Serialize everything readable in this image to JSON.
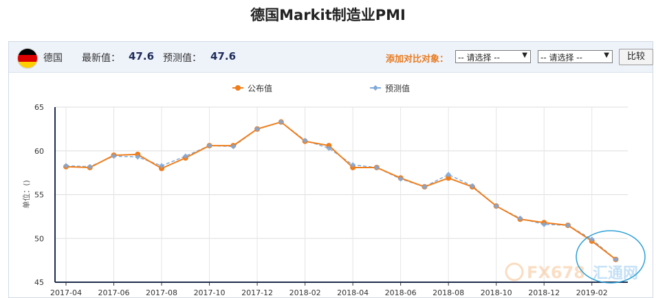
{
  "page": {
    "title": "德国Markit制造业PMI"
  },
  "header": {
    "country": "德国",
    "latest_label": "最新值：",
    "latest_value": "47.6",
    "forecast_label": "预测值：",
    "forecast_value": "47.6",
    "compare_label": "添加对比对象：",
    "select1": "-- 请选择 --",
    "select2": "-- 请选择 --",
    "compare_button": "比较"
  },
  "colors": {
    "published": "#f07d1a",
    "forecast": "#7fa9d9",
    "highlight_circle": "#2a9fd6",
    "flag": [
      "#000000",
      "#dd0000",
      "#ffce00"
    ]
  },
  "watermark": {
    "text_latin": "FX678",
    "text_cjk": "汇通网"
  },
  "chart_data": {
    "type": "line",
    "legend_position": "top-center",
    "grid": true,
    "ylabel": "单位：()",
    "ylim": [
      45,
      65
    ],
    "yticks": [
      45,
      50,
      55,
      60,
      65
    ],
    "x": [
      "2017-04",
      "2017-05",
      "2017-06",
      "2017-07",
      "2017-08",
      "2017-09",
      "2017-10",
      "2017-11",
      "2017-12",
      "2018-01",
      "2018-02",
      "2018-03",
      "2018-04",
      "2018-05",
      "2018-06",
      "2018-07",
      "2018-08",
      "2018-09",
      "2018-10",
      "2018-11",
      "2018-12",
      "2019-01",
      "2019-02",
      "2019-03"
    ],
    "xtick_labels": [
      "2017-04",
      "2017-06",
      "2017-08",
      "2017-10",
      "2017-12",
      "2018-02",
      "2018-04",
      "2018-06",
      "2018-08",
      "2018-10",
      "2018-12",
      "2019-02"
    ],
    "series": [
      {
        "name": "公布值",
        "values": [
          58.2,
          58.1,
          59.5,
          59.6,
          58.0,
          59.2,
          60.6,
          60.6,
          62.5,
          63.3,
          61.1,
          60.6,
          58.1,
          58.1,
          56.9,
          55.9,
          56.9,
          55.9,
          53.7,
          52.2,
          51.8,
          51.5,
          49.7,
          47.6
        ]
      },
      {
        "name": "预测值",
        "values": [
          58.3,
          58.2,
          59.4,
          59.3,
          58.3,
          59.4,
          60.6,
          60.5,
          62.5,
          63.3,
          61.2,
          60.3,
          58.4,
          58.1,
          56.8,
          55.9,
          57.3,
          56.0,
          53.7,
          52.3,
          51.6,
          51.5,
          49.9,
          47.6
        ]
      }
    ]
  }
}
